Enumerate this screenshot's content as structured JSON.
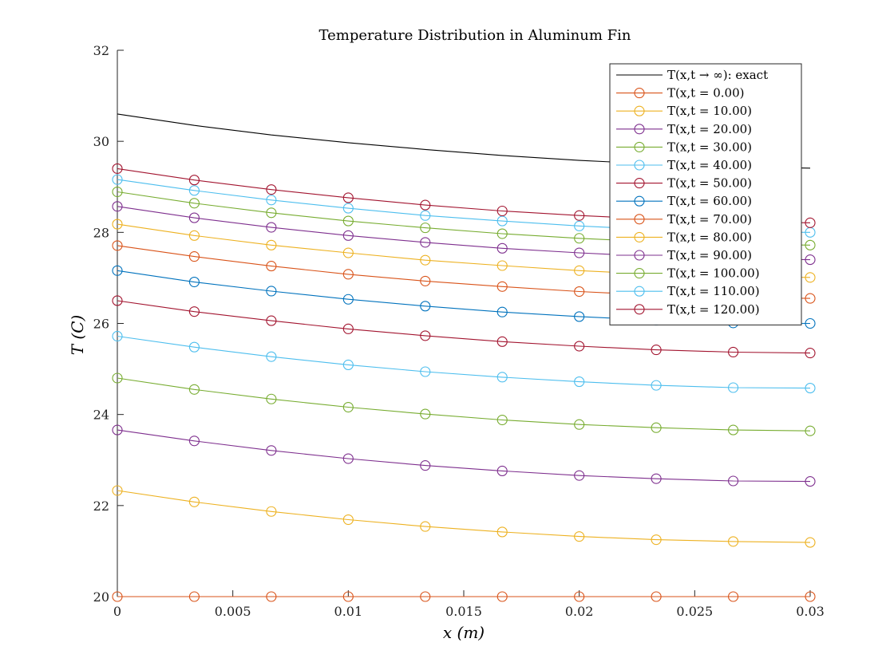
{
  "chart_data": {
    "type": "line",
    "title": "Temperature Distribution in Aluminum Fin",
    "xlabel": "x (m)",
    "ylabel": "T (C)",
    "xlim": [
      0,
      0.03
    ],
    "ylim": [
      20,
      32
    ],
    "xticks": [
      0,
      0.005,
      0.01,
      0.015,
      0.02,
      0.025,
      0.03
    ],
    "xtick_labels": [
      "0",
      "0.005",
      "0.01",
      "0.015",
      "0.02",
      "0.025",
      "0.03"
    ],
    "yticks": [
      20,
      22,
      24,
      26,
      28,
      30,
      32
    ],
    "ytick_labels": [
      "20",
      "22",
      "24",
      "26",
      "28",
      "30",
      "32"
    ],
    "grid": false,
    "legend_position": "top-right",
    "x": [
      0,
      0.003333,
      0.006667,
      0.01,
      0.013333,
      0.016667,
      0.02,
      0.023333,
      0.026667,
      0.03
    ],
    "series": [
      {
        "name": "T(x,t → ∞): exact",
        "color": "#000000",
        "marker": "none",
        "values": [
          30.6,
          30.35,
          30.14,
          29.97,
          29.82,
          29.69,
          29.58,
          29.5,
          29.44,
          29.41
        ]
      },
      {
        "name": "T(x,t = 0.00)",
        "color": "#d95319",
        "marker": "circle",
        "values": [
          20.0,
          20.0,
          20.0,
          20.0,
          20.0,
          20.0,
          20.0,
          20.0,
          20.0,
          20.0
        ]
      },
      {
        "name": "T(x,t = 10.00)",
        "color": "#edb120",
        "marker": "circle",
        "values": [
          22.33,
          22.08,
          21.87,
          21.69,
          21.54,
          21.42,
          21.32,
          21.25,
          21.21,
          21.19
        ]
      },
      {
        "name": "T(x,t = 20.00)",
        "color": "#7e2f8e",
        "marker": "circle",
        "values": [
          23.66,
          23.42,
          23.21,
          23.03,
          22.88,
          22.76,
          22.66,
          22.59,
          22.54,
          22.53
        ]
      },
      {
        "name": "T(x,t = 30.00)",
        "color": "#77ac30",
        "marker": "circle",
        "values": [
          24.8,
          24.55,
          24.34,
          24.16,
          24.01,
          23.88,
          23.78,
          23.71,
          23.66,
          23.64
        ]
      },
      {
        "name": "T(x,t = 40.00)",
        "color": "#4dbeee",
        "marker": "circle",
        "values": [
          25.72,
          25.48,
          25.27,
          25.09,
          24.94,
          24.82,
          24.72,
          24.64,
          24.59,
          24.58
        ]
      },
      {
        "name": "T(x,t = 50.00)",
        "color": "#a2142f",
        "marker": "circle",
        "values": [
          26.5,
          26.26,
          26.06,
          25.88,
          25.73,
          25.6,
          25.5,
          25.42,
          25.37,
          25.35
        ]
      },
      {
        "name": "T(x,t = 60.00)",
        "color": "#0072bd",
        "marker": "circle",
        "values": [
          27.16,
          26.91,
          26.71,
          26.53,
          26.38,
          26.25,
          26.15,
          26.07,
          26.01,
          26.0
        ]
      },
      {
        "name": "T(x,t = 70.00)",
        "color": "#d95319",
        "marker": "circle",
        "values": [
          27.71,
          27.47,
          27.26,
          27.08,
          26.93,
          26.81,
          26.7,
          26.62,
          26.57,
          26.55
        ]
      },
      {
        "name": "T(x,t = 80.00)",
        "color": "#edb120",
        "marker": "circle",
        "values": [
          28.18,
          27.93,
          27.72,
          27.55,
          27.39,
          27.27,
          27.16,
          27.08,
          27.03,
          27.01
        ]
      },
      {
        "name": "T(x,t = 90.00)",
        "color": "#7e2f8e",
        "marker": "circle",
        "values": [
          28.57,
          28.32,
          28.11,
          27.93,
          27.78,
          27.65,
          27.55,
          27.47,
          27.42,
          27.4
        ]
      },
      {
        "name": "T(x,t = 100.00)",
        "color": "#77ac30",
        "marker": "circle",
        "values": [
          28.89,
          28.64,
          28.43,
          28.25,
          28.1,
          27.97,
          27.87,
          27.79,
          27.74,
          27.72
        ]
      },
      {
        "name": "T(x,t = 110.00)",
        "color": "#4dbeee",
        "marker": "circle",
        "values": [
          29.16,
          28.92,
          28.71,
          28.53,
          28.37,
          28.25,
          28.14,
          28.06,
          28.01,
          28.0
        ]
      },
      {
        "name": "T(x,t = 120.00)",
        "color": "#a2142f",
        "marker": "circle",
        "values": [
          29.4,
          29.15,
          28.94,
          28.76,
          28.6,
          28.47,
          28.37,
          28.29,
          28.23,
          28.21
        ]
      }
    ]
  }
}
